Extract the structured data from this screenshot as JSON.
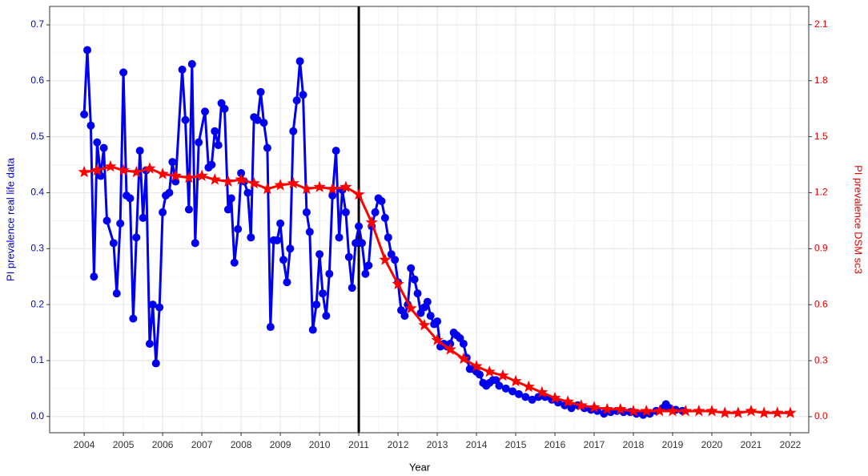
{
  "chart_data": {
    "type": "line",
    "xlabel": "Year",
    "ylabel": "PI prevalence real life data",
    "y2label": "PI prevalence DSM sc3",
    "ylabel_color": "#0000cc",
    "y2label_color": "#e60000",
    "xlim": [
      2003.12,
      2022.47
    ],
    "xticks": [
      2004,
      2005,
      2006,
      2007,
      2008,
      2009,
      2010,
      2011,
      2012,
      2013,
      2014,
      2015,
      2016,
      2017,
      2018,
      2019,
      2020,
      2021,
      2022
    ],
    "ylim": [
      -0.029,
      0.733
    ],
    "yticks": [
      {
        "value": 0,
        "label": "0.0"
      },
      0.1,
      0.2,
      0.3,
      0.4,
      0.5,
      0.6,
      0.7
    ],
    "y2lim": [
      -0.086,
      2.198
    ],
    "y2ticks": [
      {
        "value": 0,
        "label": "0.0"
      },
      0.3,
      0.6,
      0.9,
      1.2,
      1.5,
      1.8,
      2.1
    ],
    "grid": true,
    "vline": 2011,
    "series": [
      {
        "color": "#0000ee",
        "marker": "circle",
        "axis": "y",
        "x": [
          2004.0,
          2004.08,
          2004.17,
          2004.25,
          2004.33,
          2004.42,
          2004.5,
          2004.58,
          2004.75,
          2004.83,
          2004.92,
          2005.0,
          2005.08,
          2005.17,
          2005.25,
          2005.33,
          2005.42,
          2005.5,
          2005.58,
          2005.67,
          2005.75,
          2005.83,
          2005.92,
          2006.0,
          2006.08,
          2006.17,
          2006.25,
          2006.33,
          2006.5,
          2006.58,
          2006.67,
          2006.75,
          2006.83,
          2006.92,
          2007.08,
          2007.17,
          2007.25,
          2007.33,
          2007.42,
          2007.5,
          2007.58,
          2007.67,
          2007.75,
          2007.83,
          2007.92,
          2008.0,
          2008.08,
          2008.17,
          2008.25,
          2008.33,
          2008.42,
          2008.5,
          2008.58,
          2008.67,
          2008.75,
          2008.83,
          2008.92,
          2009.0,
          2009.08,
          2009.17,
          2009.25,
          2009.33,
          2009.42,
          2009.5,
          2009.58,
          2009.67,
          2009.75,
          2009.83,
          2009.92,
          2010.0,
          2010.08,
          2010.17,
          2010.25,
          2010.33,
          2010.42,
          2010.5,
          2010.58,
          2010.67,
          2010.75,
          2010.83,
          2010.92,
          2011.0,
          2011.08,
          2011.17,
          2011.25,
          2011.33,
          2011.42,
          2011.5,
          2011.58,
          2011.67,
          2011.75,
          2011.83,
          2011.92,
          2012.0,
          2012.08,
          2012.17,
          2012.25,
          2012.33,
          2012.42,
          2012.5,
          2012.58,
          2012.67,
          2012.75,
          2012.83,
          2012.92,
          2013.0,
          2013.08,
          2013.17,
          2013.25,
          2013.33,
          2013.42,
          2013.5,
          2013.58,
          2013.67,
          2013.75,
          2013.83,
          2013.92,
          2014.0,
          2014.08,
          2014.17,
          2014.25,
          2014.33,
          2014.42,
          2014.5,
          2014.58,
          2014.75,
          2014.92,
          2015.08,
          2015.25,
          2015.42,
          2015.58,
          2015.75,
          2015.92,
          2016.08,
          2016.25,
          2016.42,
          2016.58,
          2016.75,
          2016.92,
          2017.08,
          2017.25,
          2017.42,
          2017.58,
          2017.75,
          2017.92,
          2018.08,
          2018.25,
          2018.42,
          2018.58,
          2018.75,
          2018.83,
          2018.92,
          2019.08,
          2019.25
        ],
        "values": [
          0.54,
          0.655,
          0.52,
          0.25,
          0.49,
          0.43,
          0.48,
          0.35,
          0.31,
          0.22,
          0.345,
          0.615,
          0.395,
          0.39,
          0.175,
          0.32,
          0.475,
          0.355,
          0.44,
          0.13,
          0.2,
          0.095,
          0.195,
          0.365,
          0.395,
          0.4,
          0.455,
          0.42,
          0.62,
          0.53,
          0.37,
          0.63,
          0.31,
          0.49,
          0.545,
          0.445,
          0.45,
          0.51,
          0.485,
          0.56,
          0.55,
          0.37,
          0.39,
          0.275,
          0.335,
          0.435,
          0.42,
          0.4,
          0.32,
          0.535,
          0.53,
          0.58,
          0.525,
          0.48,
          0.16,
          0.315,
          0.315,
          0.345,
          0.28,
          0.24,
          0.3,
          0.51,
          0.565,
          0.635,
          0.575,
          0.365,
          0.33,
          0.155,
          0.2,
          0.29,
          0.22,
          0.18,
          0.255,
          0.395,
          0.475,
          0.32,
          0.405,
          0.365,
          0.285,
          0.23,
          0.31,
          0.34,
          0.31,
          0.255,
          0.27,
          0.34,
          0.365,
          0.39,
          0.385,
          0.355,
          0.32,
          0.29,
          0.28,
          0.24,
          0.19,
          0.18,
          0.2,
          0.265,
          0.245,
          0.22,
          0.185,
          0.195,
          0.205,
          0.18,
          0.165,
          0.17,
          0.125,
          0.13,
          0.125,
          0.13,
          0.15,
          0.145,
          0.14,
          0.13,
          0.105,
          0.085,
          0.085,
          0.08,
          0.075,
          0.06,
          0.055,
          0.06,
          0.065,
          0.065,
          0.055,
          0.05,
          0.045,
          0.04,
          0.035,
          0.03,
          0.035,
          0.035,
          0.03,
          0.025,
          0.02,
          0.015,
          0.02,
          0.015,
          0.012,
          0.01,
          0.005,
          0.008,
          0.01,
          0.008,
          0.008,
          0.005,
          0.003,
          0.005,
          0.01,
          0.015,
          0.022,
          0.015,
          0.012,
          0.01
        ]
      },
      {
        "color": "#ff0000",
        "marker": "star",
        "axis": "y2",
        "x": [
          2004.0,
          2004.33,
          2004.67,
          2005.0,
          2005.33,
          2005.67,
          2006.0,
          2006.33,
          2006.67,
          2007.0,
          2007.33,
          2007.67,
          2008.0,
          2008.33,
          2008.67,
          2009.0,
          2009.33,
          2009.67,
          2010.0,
          2010.33,
          2010.67,
          2011.0,
          2011.33,
          2011.67,
          2012.0,
          2012.33,
          2012.67,
          2013.0,
          2013.33,
          2013.67,
          2014.0,
          2014.33,
          2014.67,
          2015.0,
          2015.33,
          2015.67,
          2016.0,
          2016.33,
          2016.67,
          2017.0,
          2017.33,
          2017.67,
          2018.0,
          2018.33,
          2018.67,
          2019.0,
          2019.33,
          2019.67,
          2020.0,
          2020.33,
          2020.67,
          2021.0,
          2021.33,
          2021.67,
          2022.0
        ],
        "values": [
          1.31,
          1.32,
          1.34,
          1.32,
          1.31,
          1.33,
          1.3,
          1.29,
          1.28,
          1.29,
          1.27,
          1.26,
          1.27,
          1.25,
          1.22,
          1.24,
          1.25,
          1.22,
          1.23,
          1.22,
          1.23,
          1.19,
          1.04,
          0.84,
          0.71,
          0.58,
          0.49,
          0.41,
          0.36,
          0.31,
          0.27,
          0.24,
          0.22,
          0.19,
          0.16,
          0.13,
          0.1,
          0.08,
          0.06,
          0.05,
          0.04,
          0.04,
          0.03,
          0.03,
          0.03,
          0.03,
          0.03,
          0.03,
          0.03,
          0.02,
          0.02,
          0.03,
          0.02,
          0.02,
          0.02
        ]
      }
    ]
  }
}
